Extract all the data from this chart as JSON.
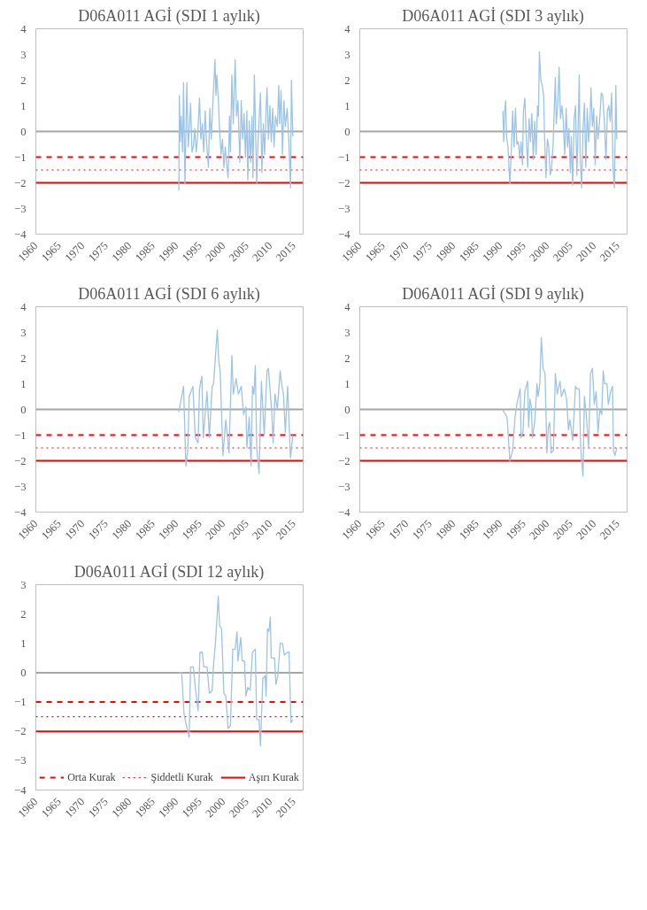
{
  "chart_data": [
    {
      "type": "line",
      "title": "D06A011 AGİ (SDI 1 aylık)",
      "xlim": [
        1960,
        2017
      ],
      "xticks": [
        1960,
        1965,
        1970,
        1975,
        1980,
        1985,
        1990,
        1995,
        2000,
        2005,
        2010,
        2015
      ],
      "ylim": [
        -4,
        4
      ],
      "yticks": [
        -4,
        -3,
        -2,
        -1,
        0,
        1,
        2,
        3,
        4
      ],
      "grid": false,
      "x": [
        1990.5,
        1990.6,
        1990.8,
        1991.0,
        1991.3,
        1991.5,
        1991.8,
        1992.2,
        1992.5,
        1992.8,
        1993.0,
        1993.3,
        1993.6,
        1993.9,
        1994.2,
        1994.5,
        1994.9,
        1995.2,
        1995.5,
        1995.8,
        1996.1,
        1996.4,
        1996.8,
        1997.1,
        1997.4,
        1997.8,
        1998.2,
        1998.4,
        1998.6,
        1998.9,
        1999.2,
        1999.5,
        1999.8,
        2000.1,
        2000.4,
        2000.7,
        2001.0,
        2001.3,
        2001.5,
        2001.8,
        2002.1,
        2002.5,
        2002.8,
        2003.1,
        2003.5,
        2003.8,
        2004.1,
        2004.4,
        2004.7,
        2005.0,
        2005.2,
        2005.5,
        2005.8,
        2006.1,
        2006.3,
        2006.6,
        2007.1,
        2007.4,
        2007.9,
        2008.2,
        2008.5,
        2008.8,
        2009.1,
        2009.3,
        2009.6,
        2009.9,
        2010.2,
        2010.5,
        2010.8,
        2011.1,
        2011.5,
        2011.8,
        2012.0,
        2012.3,
        2012.6,
        2012.9,
        2013.2,
        2013.6,
        2014.0,
        2014.3,
        2014.5,
        2014.8
      ],
      "series": [
        {
          "color": "#9dc3e6",
          "values": [
            -2.3,
            1.4,
            -0.4,
            0.6,
            -0.8,
            1.9,
            -2.05,
            1.9,
            -0.6,
            0.3,
            1.1,
            -0.8,
            -0.6,
            0.1,
            -0.8,
            -0.2,
            1.3,
            -0.3,
            0.3,
            -0.8,
            0.8,
            -0.4,
            -1.4,
            0.9,
            -0.3,
            1.3,
            2.8,
            1.4,
            2.2,
            1.3,
            0.0,
            -0.9,
            -0.3,
            -1.4,
            -0.6,
            -1.3,
            -1.8,
            0.6,
            -0.8,
            2.2,
            0.3,
            2.8,
            0.6,
            1.2,
            -1.2,
            1.2,
            -0.3,
            0.7,
            -1.0,
            0.8,
            -1.9,
            0.4,
            -1.2,
            0.6,
            -1.8,
            2.2,
            -2.0,
            -0.3,
            1.5,
            -1.6,
            0.3,
            -0.9,
            0.9,
            1.7,
            -0.3,
            1.0,
            -0.4,
            0.9,
            -0.6,
            0.6,
            0.2,
            1.8,
            0.3,
            1.6,
            -0.9,
            1.2,
            0.2,
            0.9,
            -0.6,
            -2.2,
            2.0,
            -0.2
          ]
        }
      ],
      "ref_lines": [
        {
          "axis": "y",
          "value": 0,
          "color": "#a6a6a6",
          "line_style": "solid"
        },
        {
          "axis": "y",
          "value": -1,
          "color": "#ff0000",
          "line_style": "dashed"
        },
        {
          "axis": "y",
          "value": -1.5,
          "color": "#ff0000",
          "line_style": "dotted"
        },
        {
          "axis": "y",
          "value": -2,
          "color": "#ff0000",
          "line_style": "solid"
        }
      ]
    },
    {
      "type": "line",
      "title": "D06A011 AGİ (SDI 3 aylık)",
      "xlim": [
        1960,
        2017
      ],
      "xticks": [
        1960,
        1965,
        1970,
        1975,
        1980,
        1985,
        1990,
        1995,
        2000,
        2005,
        2010,
        2015
      ],
      "ylim": [
        -4,
        4
      ],
      "yticks": [
        -4,
        -3,
        -2,
        -1,
        0,
        1,
        2,
        3,
        4
      ],
      "grid": false,
      "x": [
        1990.5,
        1990.7,
        1990.9,
        1991.1,
        1991.3,
        1991.6,
        1992.0,
        1992.3,
        1992.6,
        1992.9,
        1993.2,
        1993.5,
        1993.8,
        1994.1,
        1994.4,
        1994.7,
        1994.9,
        1995.2,
        1995.5,
        1995.8,
        1996.1,
        1996.4,
        1996.7,
        1997.0,
        1997.3,
        1997.6,
        1997.9,
        1998.1,
        1998.3,
        1998.6,
        1998.9,
        1999.2,
        1999.4,
        1999.7,
        2000.0,
        2000.3,
        2000.6,
        2000.9,
        2001.2,
        2001.7,
        2001.9,
        2002.2,
        2002.5,
        2002.8,
        2003.1,
        2003.4,
        2003.7,
        2004.0,
        2004.3,
        2004.6,
        2004.9,
        2005.1,
        2005.4,
        2005.7,
        2006.0,
        2006.3,
        2006.5,
        2006.8,
        2007.0,
        2007.3,
        2007.6,
        2007.9,
        2008.2,
        2008.5,
        2008.8,
        2009.1,
        2009.3,
        2009.6,
        2009.9,
        2010.2,
        2010.5,
        2010.8,
        2011.1,
        2011.5,
        2011.8,
        2012.1,
        2012.5,
        2012.8,
        2013.1,
        2013.4,
        2013.7,
        2014.0,
        2014.3,
        2014.6,
        2014.8
      ],
      "series": [
        {
          "color": "#9dc3e6",
          "values": [
            0.8,
            -0.4,
            0.8,
            1.2,
            -0.2,
            -0.6,
            -2.05,
            -0.8,
            0.8,
            -0.6,
            0.9,
            -0.5,
            -0.4,
            -1.0,
            -0.4,
            -1.3,
            0.8,
            1.3,
            -0.2,
            -1.4,
            0.5,
            -0.4,
            0.7,
            -1.1,
            0.4,
            -0.9,
            1.0,
            0.6,
            3.1,
            2.0,
            1.8,
            1.4,
            -0.2,
            -1.8,
            -0.3,
            -0.6,
            -1.7,
            -1.4,
            -0.6,
            2.1,
            0.3,
            1.0,
            2.5,
            0.5,
            1.0,
            0.4,
            -0.9,
            0.9,
            -0.6,
            0.1,
            -1.6,
            -0.2,
            -2.1,
            0.5,
            1.0,
            -1.7,
            -0.3,
            2.2,
            -1.0,
            -2.2,
            0.1,
            1.1,
            -1.4,
            0.9,
            -0.4,
            0.5,
            1.7,
            0.2,
            0.9,
            -1.3,
            0.6,
            -0.3,
            0.3,
            1.5,
            1.4,
            0.6,
            -1.1,
            0.8,
            1.0,
            0.4,
            1.5,
            -1.4,
            -2.2,
            1.8,
            -0.3
          ]
        }
      ],
      "ref_lines": [
        {
          "axis": "y",
          "value": 0,
          "color": "#a6a6a6",
          "line_style": "solid"
        },
        {
          "axis": "y",
          "value": -1,
          "color": "#ff0000",
          "line_style": "dashed"
        },
        {
          "axis": "y",
          "value": -1.5,
          "color": "#ff0000",
          "line_style": "dotted"
        },
        {
          "axis": "y",
          "value": -2,
          "color": "#ff0000",
          "line_style": "solid"
        }
      ]
    },
    {
      "type": "line",
      "title": "D06A011 AGİ (SDI 6 aylık)",
      "xlim": [
        1960,
        2017
      ],
      "xticks": [
        1960,
        1965,
        1970,
        1975,
        1980,
        1985,
        1990,
        1995,
        2000,
        2005,
        2010,
        2015
      ],
      "ylim": [
        -4,
        4
      ],
      "yticks": [
        -4,
        -3,
        -2,
        -1,
        0,
        1,
        2,
        3,
        4
      ],
      "grid": false,
      "x": [
        1990.5,
        1991.5,
        1992.0,
        1992.4,
        1992.7,
        1993.5,
        1994.0,
        1994.6,
        1994.9,
        1995.4,
        1995.7,
        1996.5,
        1997.0,
        1997.6,
        1997.9,
        1998.7,
        1999.0,
        1999.3,
        1999.9,
        2000.5,
        2001.2,
        2001.8,
        2002.1,
        2002.7,
        2003.2,
        2003.8,
        2004.3,
        2004.8,
        2005.0,
        2005.5,
        2005.9,
        2006.2,
        2006.5,
        2006.8,
        2007.1,
        2007.6,
        2008.1,
        2008.7,
        2009.3,
        2009.6,
        2010.3,
        2010.6,
        2011.0,
        2011.5,
        2012.1,
        2012.4,
        2012.8,
        2013.2,
        2013.7,
        2014.3,
        2014.8
      ],
      "series": [
        {
          "color": "#9dc3e6",
          "values": [
            -0.1,
            0.9,
            -2.2,
            -1.6,
            0.5,
            0.9,
            -1.1,
            -1.3,
            0.8,
            1.3,
            -1.1,
            0.7,
            -1.1,
            0.9,
            1.0,
            3.1,
            1.9,
            1.5,
            -1.8,
            -0.4,
            -1.7,
            2.1,
            0.6,
            1.2,
            0.6,
            0.9,
            -0.2,
            0.1,
            -1.5,
            -0.3,
            -2.2,
            0.9,
            0.6,
            1.7,
            -1.5,
            -2.5,
            1.1,
            -1.0,
            1.5,
            1.6,
            -0.1,
            -1.3,
            0.6,
            0.0,
            1.5,
            1.0,
            0.6,
            -0.9,
            0.9,
            -1.9,
            -1.0
          ]
        }
      ],
      "ref_lines": [
        {
          "axis": "y",
          "value": 0,
          "color": "#a6a6a6",
          "line_style": "solid"
        },
        {
          "axis": "y",
          "value": -1,
          "color": "#ff0000",
          "line_style": "dashed"
        },
        {
          "axis": "y",
          "value": -1.5,
          "color": "#ff0000",
          "line_style": "dotted"
        },
        {
          "axis": "y",
          "value": -2,
          "color": "#ff0000",
          "line_style": "solid"
        }
      ]
    },
    {
      "type": "line",
      "title": "D06A011 AGİ (SDI 9 aylık)",
      "xlim": [
        1960,
        2017
      ],
      "xticks": [
        1960,
        1965,
        1970,
        1975,
        1980,
        1985,
        1990,
        1995,
        2000,
        2005,
        2010,
        2015
      ],
      "ylim": [
        -4,
        4
      ],
      "yticks": [
        -4,
        -3,
        -2,
        -1,
        0,
        1,
        2,
        3,
        4
      ],
      "grid": false,
      "x": [
        1990.4,
        1991.4,
        1992.0,
        1992.6,
        1993.1,
        1993.5,
        1994.2,
        1994.4,
        1994.8,
        1995.2,
        1995.8,
        1996.0,
        1996.3,
        1996.6,
        1996.8,
        1997.3,
        1997.8,
        1998.0,
        1998.4,
        1998.7,
        1999.1,
        1999.5,
        1999.9,
        2000.2,
        2000.5,
        2000.8,
        2001.3,
        2001.7,
        2002.1,
        2002.7,
        2003.0,
        2003.6,
        2004.1,
        2004.5,
        2004.8,
        2005.4,
        2006.0,
        2006.3,
        2006.8,
        2007.1,
        2007.6,
        2007.9,
        2008.3,
        2008.8,
        2009.2,
        2009.6,
        2010.0,
        2010.4,
        2010.8,
        2011.2,
        2011.6,
        2011.9,
        2012.2,
        2012.7,
        2013.0,
        2013.5,
        2013.9,
        2014.1,
        2014.4,
        2014.8
      ],
      "series": [
        {
          "color": "#9dc3e6",
          "values": [
            0.0,
            -0.3,
            -2.0,
            -1.6,
            -0.3,
            0.2,
            0.8,
            -1.1,
            -0.9,
            0.7,
            1.1,
            -0.7,
            0.4,
            0.1,
            -1.1,
            -0.5,
            1.0,
            0.5,
            1.0,
            2.8,
            1.6,
            1.4,
            -1.7,
            -0.7,
            -0.5,
            -1.7,
            -1.6,
            1.4,
            0.6,
            1.1,
            0.5,
            0.8,
            0.4,
            -0.8,
            -0.4,
            -1.2,
            0.9,
            0.8,
            0.8,
            -1.5,
            -2.6,
            0.5,
            -0.2,
            -1.5,
            1.4,
            1.6,
            0.2,
            0.7,
            -0.9,
            0.0,
            -0.2,
            1.5,
            1.0,
            1.0,
            0.2,
            0.7,
            0.9,
            -1.6,
            -1.8,
            -1.5
          ]
        }
      ],
      "ref_lines": [
        {
          "axis": "y",
          "value": 0,
          "color": "#a6a6a6",
          "line_style": "solid"
        },
        {
          "axis": "y",
          "value": -1,
          "color": "#ff0000",
          "line_style": "dashed"
        },
        {
          "axis": "y",
          "value": -1.5,
          "color": "#ff0000",
          "line_style": "dotted"
        },
        {
          "axis": "y",
          "value": -2,
          "color": "#ff0000",
          "line_style": "solid"
        }
      ]
    },
    {
      "type": "line",
      "title": "D06A011 AGİ (SDI 12 aylık)",
      "xlim": [
        1960,
        2017
      ],
      "xticks": [
        1960,
        1965,
        1970,
        1975,
        1980,
        1985,
        1990,
        1995,
        2000,
        2005,
        2010,
        2015
      ],
      "ylim": [
        -4,
        3
      ],
      "yticks": [
        -4,
        -3,
        -2,
        -1,
        0,
        1,
        2,
        3
      ],
      "grid": false,
      "legend": "bottom",
      "x": [
        1990.5,
        1991.1,
        1991.6,
        1992.1,
        1992.7,
        1993.0,
        1993.6,
        1994.0,
        1994.6,
        1995.0,
        1995.5,
        1995.8,
        1996.5,
        1997.0,
        1997.6,
        1997.9,
        1998.3,
        1998.9,
        1999.2,
        1999.6,
        2000.1,
        2000.5,
        2001.0,
        2001.5,
        2002.0,
        2002.5,
        2002.9,
        2003.1,
        2003.7,
        2004.0,
        2004.5,
        2004.8,
        2005.2,
        2005.7,
        2006.2,
        2006.8,
        2007.1,
        2007.6,
        2007.9,
        2008.4,
        2008.9,
        2009.1,
        2009.4,
        2009.7,
        2010.0,
        2010.2,
        2010.9,
        2011.2,
        2011.6,
        2012.1,
        2012.6,
        2013.0,
        2013.7,
        2014.0,
        2014.4,
        2014.8
      ],
      "series": [
        {
          "color": "#9dc3e6",
          "values": [
            0.0,
            0.0,
            -1.4,
            -1.8,
            -2.2,
            0.2,
            0.2,
            -0.5,
            -1.3,
            0.7,
            0.7,
            0.2,
            0.2,
            -0.7,
            -0.6,
            0.3,
            1.0,
            2.6,
            1.6,
            1.5,
            -0.7,
            -0.8,
            -1.9,
            -1.8,
            0.8,
            0.8,
            1.4,
            0.4,
            1.2,
            0.4,
            0.4,
            -0.8,
            -0.5,
            -0.6,
            0.7,
            0.8,
            -1.6,
            -1.6,
            -2.5,
            -0.2,
            -0.1,
            -0.8,
            1.5,
            1.4,
            1.9,
            0.5,
            0.5,
            -0.4,
            -0.1,
            1.0,
            1.0,
            0.6,
            0.7,
            0.7,
            -1.7,
            -1.6
          ]
        }
      ],
      "ref_lines": [
        {
          "axis": "y",
          "value": 0,
          "color": "#a6a6a6",
          "line_style": "solid"
        },
        {
          "axis": "y",
          "value": -1,
          "color": "#ff0000",
          "line_style": "dashed",
          "label": "Orta Kurak"
        },
        {
          "axis": "y",
          "value": -1.5,
          "color": "#ff0000",
          "line_style": "dotted",
          "label": "Şiddetli Kurak"
        },
        {
          "axis": "y",
          "value": -2,
          "color": "#ff0000",
          "line_style": "solid",
          "label": "Aşırı Kurak"
        }
      ]
    }
  ]
}
